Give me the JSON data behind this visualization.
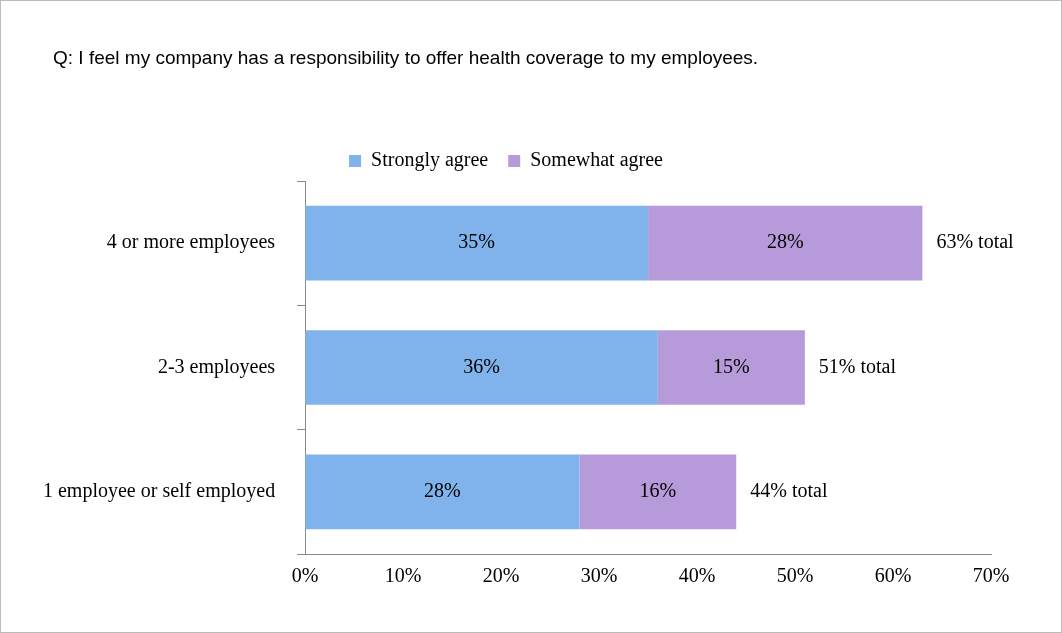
{
  "chart_data": {
    "type": "bar",
    "orientation": "horizontal",
    "stacked": true,
    "title": "Q: I feel my company has a responsibility to offer health coverage to my employees.",
    "categories": [
      "4 or more employees",
      "2-3 employees",
      "1 employee or self employed"
    ],
    "series": [
      {
        "name": "Strongly agree",
        "color": "#80b3eb",
        "values": [
          35,
          36,
          28
        ],
        "value_labels": [
          "35%",
          "36%",
          "28%"
        ]
      },
      {
        "name": "Somewhat agree",
        "color": "#b69ad9",
        "values": [
          28,
          15,
          16
        ],
        "value_labels": [
          "28%",
          "15%",
          "16%"
        ]
      }
    ],
    "totals": [
      "63% total",
      "51% total",
      "44% total"
    ],
    "xlim": [
      0,
      70
    ],
    "xticks": [
      {
        "value": 0,
        "label": "0%"
      },
      {
        "value": 10,
        "label": "10%"
      },
      {
        "value": 20,
        "label": "20%"
      },
      {
        "value": 30,
        "label": "30%"
      },
      {
        "value": 40,
        "label": "40%"
      },
      {
        "value": 50,
        "label": "50%"
      },
      {
        "value": 60,
        "label": "60%"
      },
      {
        "value": 70,
        "label": "70%"
      }
    ],
    "grid": false,
    "legend": "top"
  }
}
